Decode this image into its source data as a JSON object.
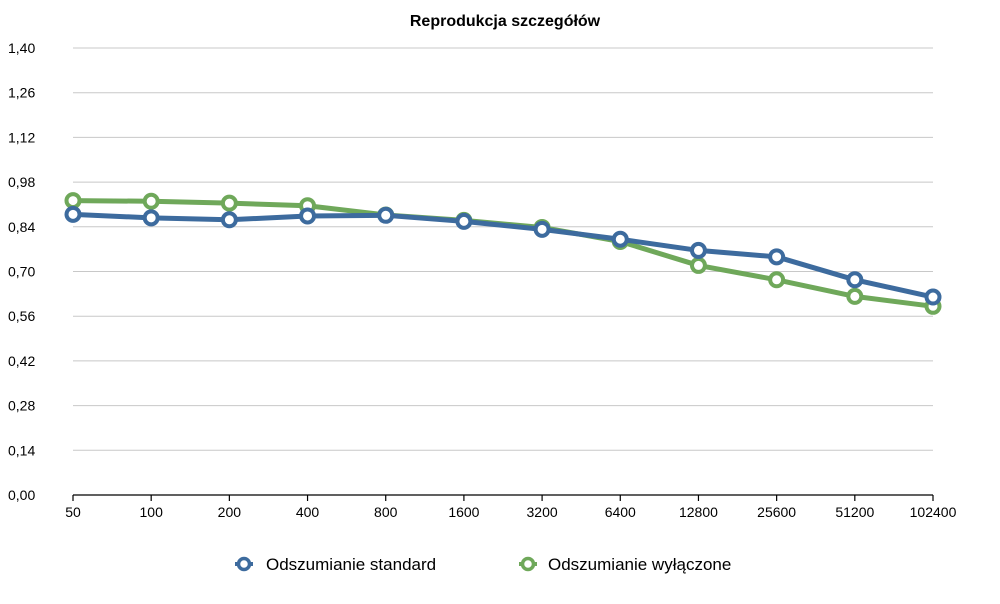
{
  "chart_data": {
    "type": "line",
    "title": "Reprodukcja szczegółów",
    "xlabel": "",
    "ylabel": "",
    "categories": [
      "50",
      "100",
      "200",
      "400",
      "800",
      "1600",
      "3200",
      "6400",
      "12800",
      "25600",
      "51200",
      "102400"
    ],
    "y_ticks": [
      "0,00",
      "0,14",
      "0,28",
      "0,42",
      "0,56",
      "0,70",
      "0,84",
      "0,98",
      "1,12",
      "1,26",
      "1,40"
    ],
    "ylim": [
      0,
      1.4
    ],
    "grid": true,
    "legend_position": "bottom",
    "series": [
      {
        "name": "Odszumianie standard",
        "color": "#3d6b9e",
        "values": [
          0.879,
          0.868,
          0.862,
          0.874,
          0.876,
          0.857,
          0.832,
          0.801,
          0.766,
          0.746,
          0.674,
          0.62
        ]
      },
      {
        "name": "Odszumianie wyłączone",
        "color": "#6fa85a",
        "values": [
          0.922,
          0.92,
          0.914,
          0.906,
          0.877,
          0.86,
          0.838,
          0.794,
          0.719,
          0.674,
          0.622,
          0.591
        ]
      }
    ]
  }
}
